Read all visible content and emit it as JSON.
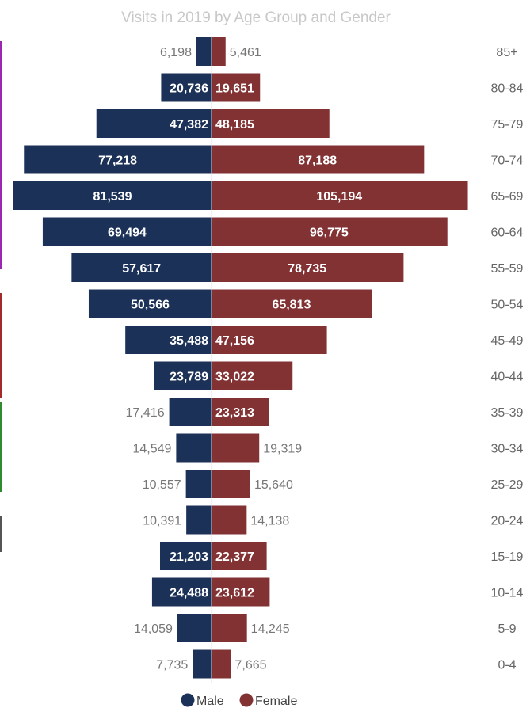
{
  "chart_data": {
    "type": "bar",
    "orientation": "horizontal-population-pyramid",
    "title": "Visits in 2019 by Age Group and Gender",
    "categories": [
      "85+",
      "80-84",
      "75-79",
      "70-74",
      "65-69",
      "60-64",
      "55-59",
      "50-54",
      "45-49",
      "40-44",
      "35-39",
      "30-34",
      "25-29",
      "20-24",
      "15-19",
      "10-14",
      "5-9",
      "0-4"
    ],
    "series": [
      {
        "name": "Male",
        "color": "#1b3157",
        "values": [
          6198,
          20736,
          47382,
          77218,
          81539,
          69494,
          57617,
          50566,
          35488,
          23789,
          17416,
          14549,
          10557,
          10391,
          21203,
          24488,
          14059,
          7735
        ],
        "labels": [
          "6,198",
          "20,736",
          "47,382",
          "77,218",
          "81,539",
          "69,494",
          "57,617",
          "50,566",
          "35,488",
          "23,789",
          "17,416",
          "14,549",
          "10,557",
          "10,391",
          "21,203",
          "24,488",
          "14,059",
          "7,735"
        ]
      },
      {
        "name": "Female",
        "color": "#823233",
        "values": [
          5461,
          19651,
          48185,
          87188,
          105194,
          96775,
          78735,
          65813,
          47156,
          33022,
          23313,
          19319,
          15640,
          14138,
          22377,
          23612,
          14245,
          7665
        ],
        "labels": [
          "5,461",
          "19,651",
          "48,185",
          "87,188",
          "105,194",
          "96,775",
          "78,735",
          "65,813",
          "47,156",
          "33,022",
          "23,313",
          "19,319",
          "15,640",
          "14,138",
          "22,377",
          "23,612",
          "14,245",
          "7,665"
        ]
      }
    ],
    "legend_position": "bottom-center",
    "grid": false
  },
  "side_markers": [
    {
      "color": "#9b27b0"
    },
    {
      "color": "#a32a2a"
    },
    {
      "color": "#2e8b2e"
    },
    {
      "color": "#555555"
    }
  ]
}
